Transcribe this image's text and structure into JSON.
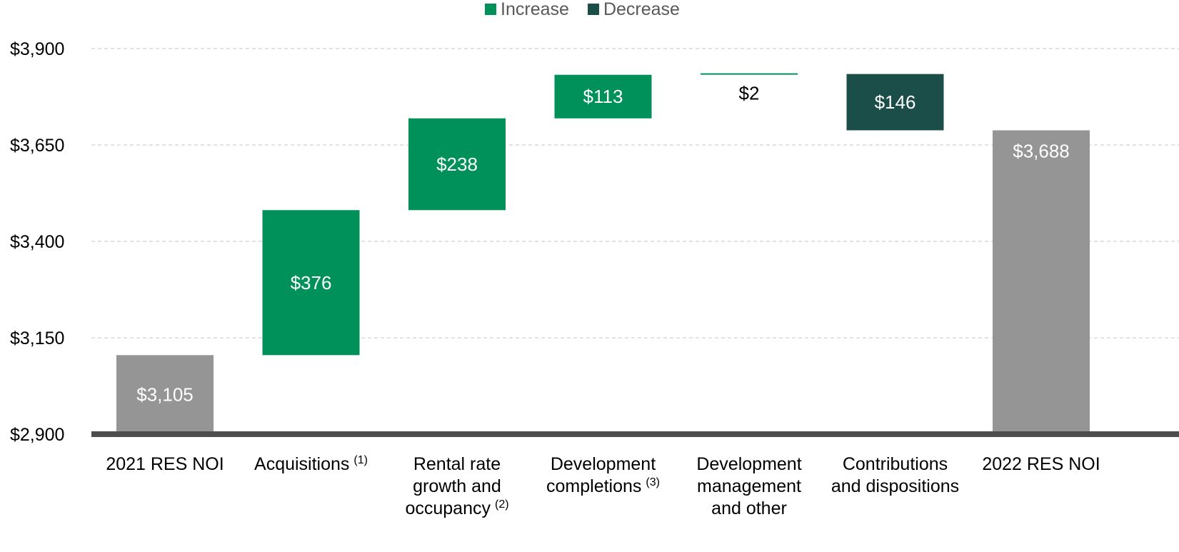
{
  "colors": {
    "increase": "#00905a",
    "decrease": "#1b4d49",
    "total": "#959595",
    "axis": "#4d4d4f",
    "grid": "#d9d9d9"
  },
  "legend": [
    {
      "label": "Increase",
      "color_key": "increase"
    },
    {
      "label": "Decrease",
      "color_key": "decrease"
    }
  ],
  "chart_data": {
    "type": "bar",
    "subtype": "waterfall",
    "title": "",
    "xlabel": "",
    "ylabel": "",
    "ylim": [
      2900,
      3900
    ],
    "yticks": [
      2900,
      3150,
      3400,
      3650,
      3900
    ],
    "ytick_labels": [
      "$2,900",
      "$3,150",
      "$3,400",
      "$3,650",
      "$3,900"
    ],
    "grid": true,
    "legend_position": "top-center",
    "categories": [
      {
        "label": [
          "2021 RES NOI"
        ],
        "sup": ""
      },
      {
        "label": [
          "Acquisitions"
        ],
        "sup": "(1)"
      },
      {
        "label": [
          "Rental rate",
          "growth and",
          "occupancy"
        ],
        "sup": "(2)"
      },
      {
        "label": [
          "Development",
          "completions"
        ],
        "sup": "(3)"
      },
      {
        "label": [
          "Development",
          "management",
          "and other"
        ],
        "sup": ""
      },
      {
        "label": [
          "Contributions",
          "and dispositions"
        ],
        "sup": ""
      },
      {
        "label": [
          "2022 RES NOI"
        ],
        "sup": ""
      }
    ],
    "bars": [
      {
        "kind": "total",
        "start": 2900,
        "end": 3105,
        "label": "$3,105"
      },
      {
        "kind": "increase",
        "start": 3105,
        "end": 3481,
        "label": "$376"
      },
      {
        "kind": "increase",
        "start": 3481,
        "end": 3719,
        "label": "$238"
      },
      {
        "kind": "increase",
        "start": 3719,
        "end": 3832,
        "label": "$113"
      },
      {
        "kind": "increase",
        "start": 3832,
        "end": 3834,
        "label": "$2"
      },
      {
        "kind": "decrease",
        "start": 3834,
        "end": 3688,
        "label": "$146"
      },
      {
        "kind": "total",
        "start": 2900,
        "end": 3688,
        "label": "$3,688"
      }
    ]
  }
}
